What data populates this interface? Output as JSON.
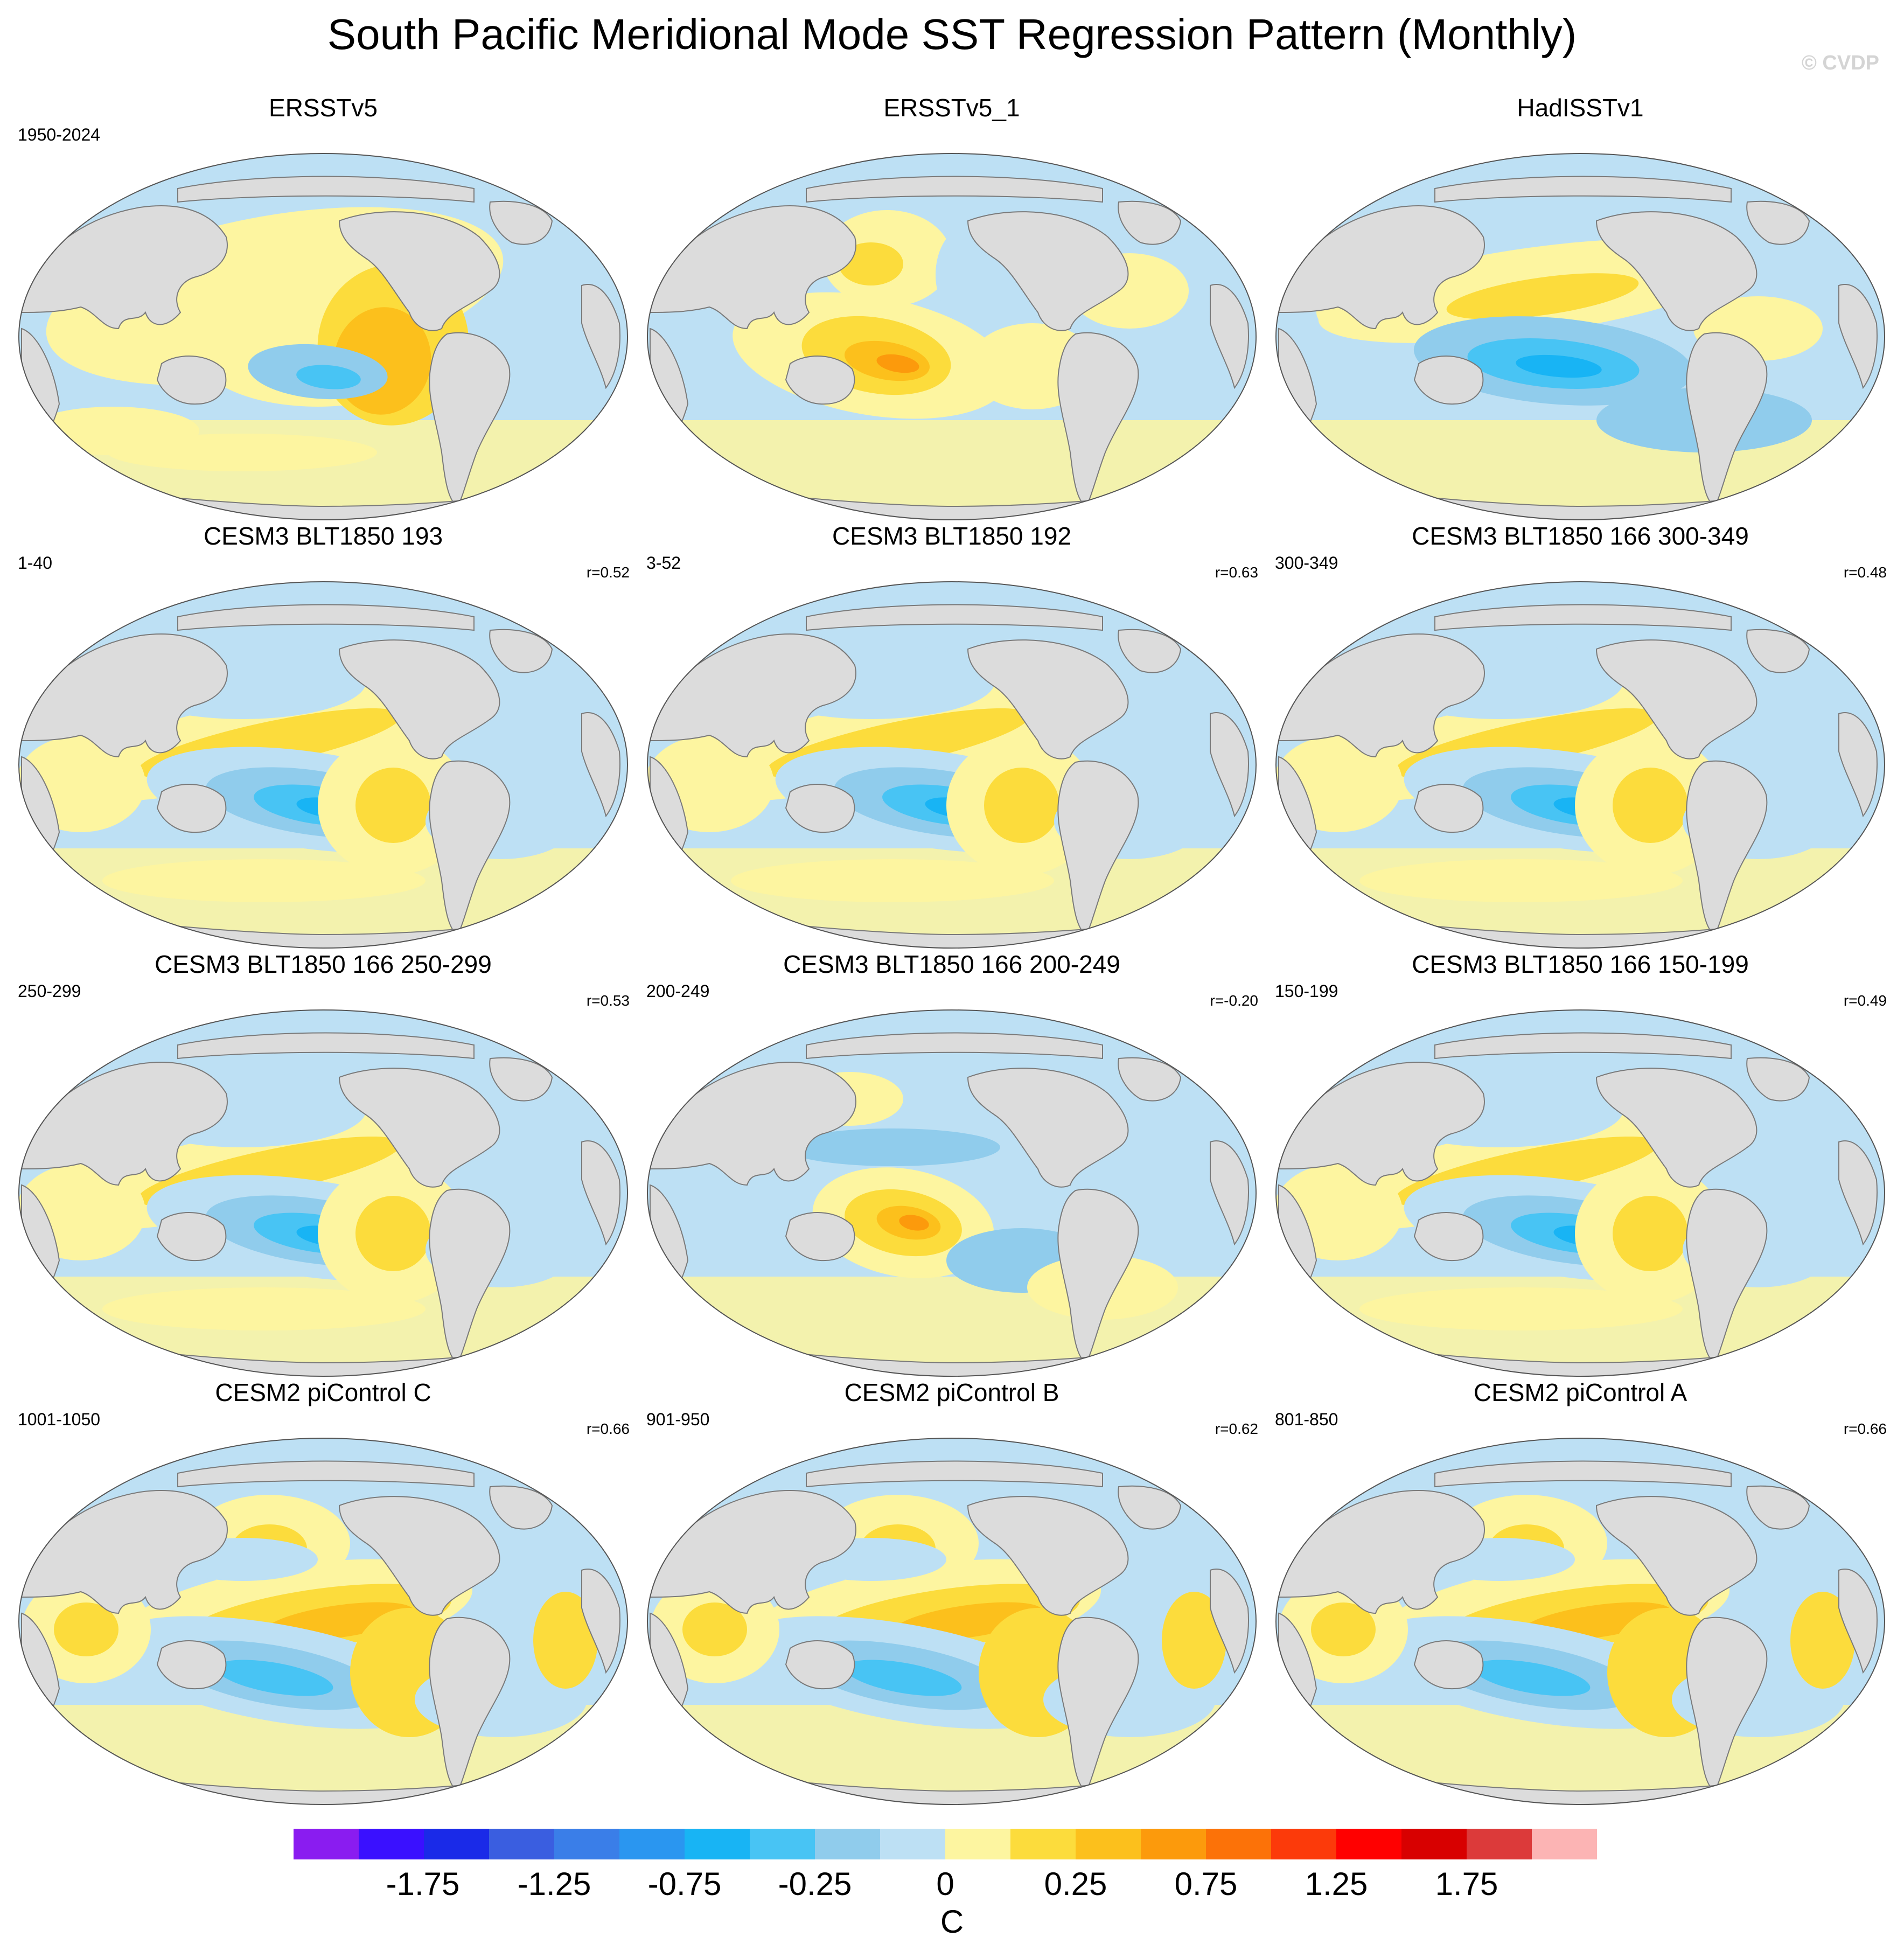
{
  "title": "South Pacific Meridional Mode SST Regression Pattern (Monthly)",
  "watermark": "© CVDP",
  "panels": [
    {
      "title": "ERSSTv5",
      "period": "1950-2024",
      "corr": "",
      "pattern": "obs1"
    },
    {
      "title": "ERSSTv5_1",
      "period": "",
      "corr": "",
      "pattern": "obs2"
    },
    {
      "title": "HadISSTv1",
      "period": "",
      "corr": "",
      "pattern": "obs3"
    },
    {
      "title": "CESM3 BLT1850 193",
      "period": "1-40",
      "corr": "r=0.52",
      "pattern": "model"
    },
    {
      "title": "CESM3 BLT1850 192",
      "period": "3-52",
      "corr": "r=0.63",
      "pattern": "model"
    },
    {
      "title": "CESM3 BLT1850 166 300-349",
      "period": "300-349",
      "corr": "r=0.48",
      "pattern": "model"
    },
    {
      "title": "CESM3 BLT1850 166 250-299",
      "period": "250-299",
      "corr": "r=0.53",
      "pattern": "model"
    },
    {
      "title": "CESM3 BLT1850 166 200-249",
      "period": "200-249",
      "corr": "r=-0.20",
      "pattern": "warmcenter"
    },
    {
      "title": "CESM3 BLT1850 166 150-199",
      "period": "150-199",
      "corr": "r=0.49",
      "pattern": "model"
    },
    {
      "title": "CESM2 piControl C",
      "period": "1001-1050",
      "corr": "r=0.66",
      "pattern": "cesm2"
    },
    {
      "title": "CESM2 piControl B",
      "period": "901-950",
      "corr": "r=0.62",
      "pattern": "cesm2"
    },
    {
      "title": "CESM2 piControl A",
      "period": "801-850",
      "corr": "r=0.66",
      "pattern": "cesm2"
    }
  ],
  "colorbar": {
    "units": "C",
    "labels": [
      "-1.75",
      "-1.25",
      "-0.75",
      "-0.25",
      "0",
      "0.25",
      "0.75",
      "1.25",
      "1.75"
    ],
    "colors": [
      "#8a1cf0",
      "#3a10ff",
      "#1a2ae8",
      "#3a5ee0",
      "#3a7ee8",
      "#2a96f0",
      "#18b4f4",
      "#48c4f4",
      "#90ccec",
      "#bde0f4",
      "#fdf5a0",
      "#fcdc3c",
      "#fcc01c",
      "#fc9a0c",
      "#fc7208",
      "#fc3a0a",
      "#ff0000",
      "#d80000",
      "#dc3a3a",
      "#fcb4b4"
    ]
  }
}
